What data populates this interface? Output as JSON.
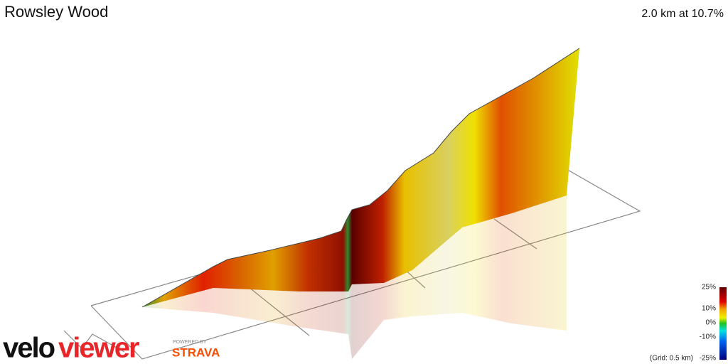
{
  "header": {
    "title": "Rowsley Wood",
    "summary": "2.0 km at 10.7%"
  },
  "legend": {
    "labels": [
      "25%",
      "10%",
      "0%",
      "-10%",
      "-25%"
    ],
    "grid_note": "(Grid: 0.5 km)"
  },
  "branding": {
    "logo_velo": "velo",
    "logo_viewer": "viewer",
    "powered_by": "POWERED BY",
    "strava": "STRAVA"
  }
}
